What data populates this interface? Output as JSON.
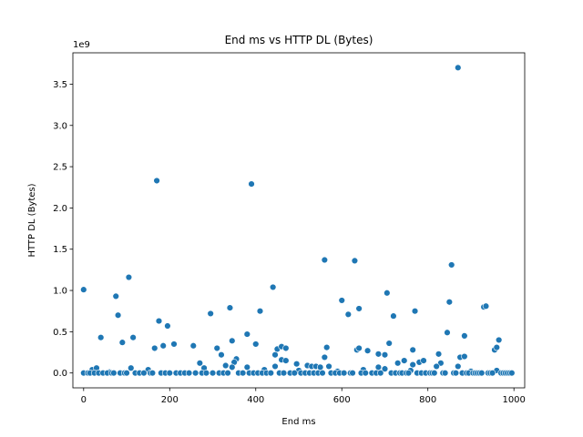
{
  "chart_data": {
    "type": "scatter",
    "title": "End ms vs HTTP DL (Bytes)",
    "xlabel": "End ms",
    "ylabel": "HTTP DL (Bytes)",
    "y_multiplier_label": "1e9",
    "xlim": [
      -25,
      1025
    ],
    "ylim": [
      -0.18,
      3.88
    ],
    "xticks": [
      0,
      200,
      400,
      600,
      800,
      1000
    ],
    "xtick_labels": [
      "0",
      "200",
      "400",
      "600",
      "800",
      "1000"
    ],
    "yticks": [
      0.0,
      0.5,
      1.0,
      1.5,
      2.0,
      2.5,
      3.0,
      3.5
    ],
    "ytick_labels": [
      "0.0",
      "0.5",
      "1.0",
      "1.5",
      "2.0",
      "2.5",
      "3.0",
      "3.5"
    ],
    "grid": false,
    "legend": "none",
    "marker_color": "#1f77b4",
    "points": [
      [
        870,
        3.7
      ],
      [
        170,
        2.33
      ],
      [
        390,
        2.29
      ],
      [
        560,
        1.37
      ],
      [
        630,
        1.36
      ],
      [
        855,
        1.31
      ],
      [
        105,
        1.16
      ],
      [
        0,
        1.01
      ],
      [
        440,
        1.04
      ],
      [
        75,
        0.93
      ],
      [
        705,
        0.97
      ],
      [
        600,
        0.88
      ],
      [
        850,
        0.86
      ],
      [
        930,
        0.8
      ],
      [
        935,
        0.81
      ],
      [
        340,
        0.79
      ],
      [
        640,
        0.78
      ],
      [
        770,
        0.75
      ],
      [
        410,
        0.75
      ],
      [
        295,
        0.72
      ],
      [
        615,
        0.71
      ],
      [
        80,
        0.7
      ],
      [
        720,
        0.69
      ],
      [
        175,
        0.63
      ],
      [
        195,
        0.57
      ],
      [
        845,
        0.49
      ],
      [
        380,
        0.47
      ],
      [
        885,
        0.45
      ],
      [
        40,
        0.43
      ],
      [
        965,
        0.4
      ],
      [
        345,
        0.39
      ],
      [
        90,
        0.37
      ],
      [
        115,
        0.43
      ],
      [
        185,
        0.33
      ],
      [
        210,
        0.35
      ],
      [
        255,
        0.33
      ],
      [
        310,
        0.3
      ],
      [
        400,
        0.35
      ],
      [
        450,
        0.29
      ],
      [
        460,
        0.32
      ],
      [
        470,
        0.3
      ],
      [
        565,
        0.31
      ],
      [
        635,
        0.28
      ],
      [
        640,
        0.3
      ],
      [
        660,
        0.27
      ],
      [
        710,
        0.36
      ],
      [
        765,
        0.28
      ],
      [
        955,
        0.28
      ],
      [
        960,
        0.31
      ],
      [
        165,
        0.3
      ],
      [
        320,
        0.22
      ],
      [
        355,
        0.17
      ],
      [
        350,
        0.13
      ],
      [
        445,
        0.22
      ],
      [
        460,
        0.16
      ],
      [
        470,
        0.15
      ],
      [
        560,
        0.19
      ],
      [
        685,
        0.23
      ],
      [
        700,
        0.22
      ],
      [
        745,
        0.15
      ],
      [
        780,
        0.13
      ],
      [
        790,
        0.15
      ],
      [
        825,
        0.23
      ],
      [
        875,
        0.19
      ],
      [
        885,
        0.2
      ],
      [
        830,
        0.12
      ],
      [
        270,
        0.12
      ],
      [
        330,
        0.09
      ],
      [
        345,
        0.07
      ],
      [
        380,
        0.07
      ],
      [
        445,
        0.08
      ],
      [
        495,
        0.11
      ],
      [
        520,
        0.09
      ],
      [
        530,
        0.08
      ],
      [
        540,
        0.08
      ],
      [
        550,
        0.07
      ],
      [
        570,
        0.08
      ],
      [
        685,
        0.07
      ],
      [
        730,
        0.12
      ],
      [
        765,
        0.1
      ],
      [
        820,
        0.08
      ],
      [
        870,
        0.08
      ],
      [
        20,
        0.04
      ],
      [
        30,
        0.06
      ],
      [
        60,
        0.01
      ],
      [
        110,
        0.06
      ],
      [
        150,
        0.04
      ],
      [
        280,
        0.06
      ],
      [
        420,
        0.04
      ],
      [
        500,
        0.03
      ],
      [
        590,
        0.02
      ],
      [
        650,
        0.04
      ],
      [
        700,
        0.05
      ],
      [
        760,
        0.03
      ],
      [
        900,
        0.02
      ],
      [
        960,
        0.03
      ],
      [
        0,
        0.0
      ],
      [
        10,
        0.0
      ],
      [
        15,
        0.0
      ],
      [
        25,
        0.0
      ],
      [
        35,
        0.0
      ],
      [
        45,
        0.0
      ],
      [
        55,
        0.0
      ],
      [
        65,
        0.0
      ],
      [
        70,
        0.0
      ],
      [
        85,
        0.0
      ],
      [
        95,
        0.0
      ],
      [
        100,
        0.0
      ],
      [
        120,
        0.0
      ],
      [
        130,
        0.0
      ],
      [
        140,
        0.0
      ],
      [
        155,
        0.0
      ],
      [
        160,
        0.0
      ],
      [
        180,
        0.0
      ],
      [
        190,
        0.0
      ],
      [
        200,
        0.0
      ],
      [
        215,
        0.0
      ],
      [
        225,
        0.0
      ],
      [
        235,
        0.0
      ],
      [
        245,
        0.0
      ],
      [
        260,
        0.0
      ],
      [
        275,
        0.0
      ],
      [
        285,
        0.0
      ],
      [
        300,
        0.0
      ],
      [
        315,
        0.0
      ],
      [
        325,
        0.0
      ],
      [
        335,
        0.0
      ],
      [
        360,
        0.0
      ],
      [
        370,
        0.0
      ],
      [
        385,
        0.0
      ],
      [
        395,
        0.0
      ],
      [
        405,
        0.0
      ],
      [
        415,
        0.0
      ],
      [
        425,
        0.0
      ],
      [
        435,
        0.0
      ],
      [
        455,
        0.0
      ],
      [
        465,
        0.0
      ],
      [
        480,
        0.0
      ],
      [
        490,
        0.0
      ],
      [
        505,
        0.0
      ],
      [
        515,
        0.0
      ],
      [
        525,
        0.0
      ],
      [
        535,
        0.0
      ],
      [
        545,
        0.0
      ],
      [
        555,
        0.0
      ],
      [
        575,
        0.0
      ],
      [
        585,
        0.0
      ],
      [
        595,
        0.0
      ],
      [
        605,
        0.0
      ],
      [
        620,
        0.0
      ],
      [
        625,
        0.0
      ],
      [
        645,
        0.0
      ],
      [
        655,
        0.0
      ],
      [
        670,
        0.0
      ],
      [
        680,
        0.0
      ],
      [
        690,
        0.0
      ],
      [
        715,
        0.0
      ],
      [
        725,
        0.0
      ],
      [
        735,
        0.0
      ],
      [
        740,
        0.0
      ],
      [
        750,
        0.0
      ],
      [
        755,
        0.0
      ],
      [
        775,
        0.0
      ],
      [
        785,
        0.0
      ],
      [
        795,
        0.0
      ],
      [
        805,
        0.0
      ],
      [
        810,
        0.0
      ],
      [
        815,
        0.0
      ],
      [
        835,
        0.0
      ],
      [
        840,
        0.0
      ],
      [
        860,
        0.0
      ],
      [
        865,
        0.0
      ],
      [
        880,
        0.0
      ],
      [
        890,
        0.0
      ],
      [
        895,
        0.0
      ],
      [
        905,
        0.0
      ],
      [
        910,
        0.0
      ],
      [
        915,
        0.0
      ],
      [
        920,
        0.0
      ],
      [
        925,
        0.0
      ],
      [
        940,
        0.0
      ],
      [
        945,
        0.0
      ],
      [
        950,
        0.0
      ],
      [
        970,
        0.0
      ],
      [
        975,
        0.0
      ],
      [
        980,
        0.0
      ],
      [
        985,
        0.0
      ],
      [
        990,
        0.0
      ],
      [
        995,
        0.0
      ]
    ]
  }
}
